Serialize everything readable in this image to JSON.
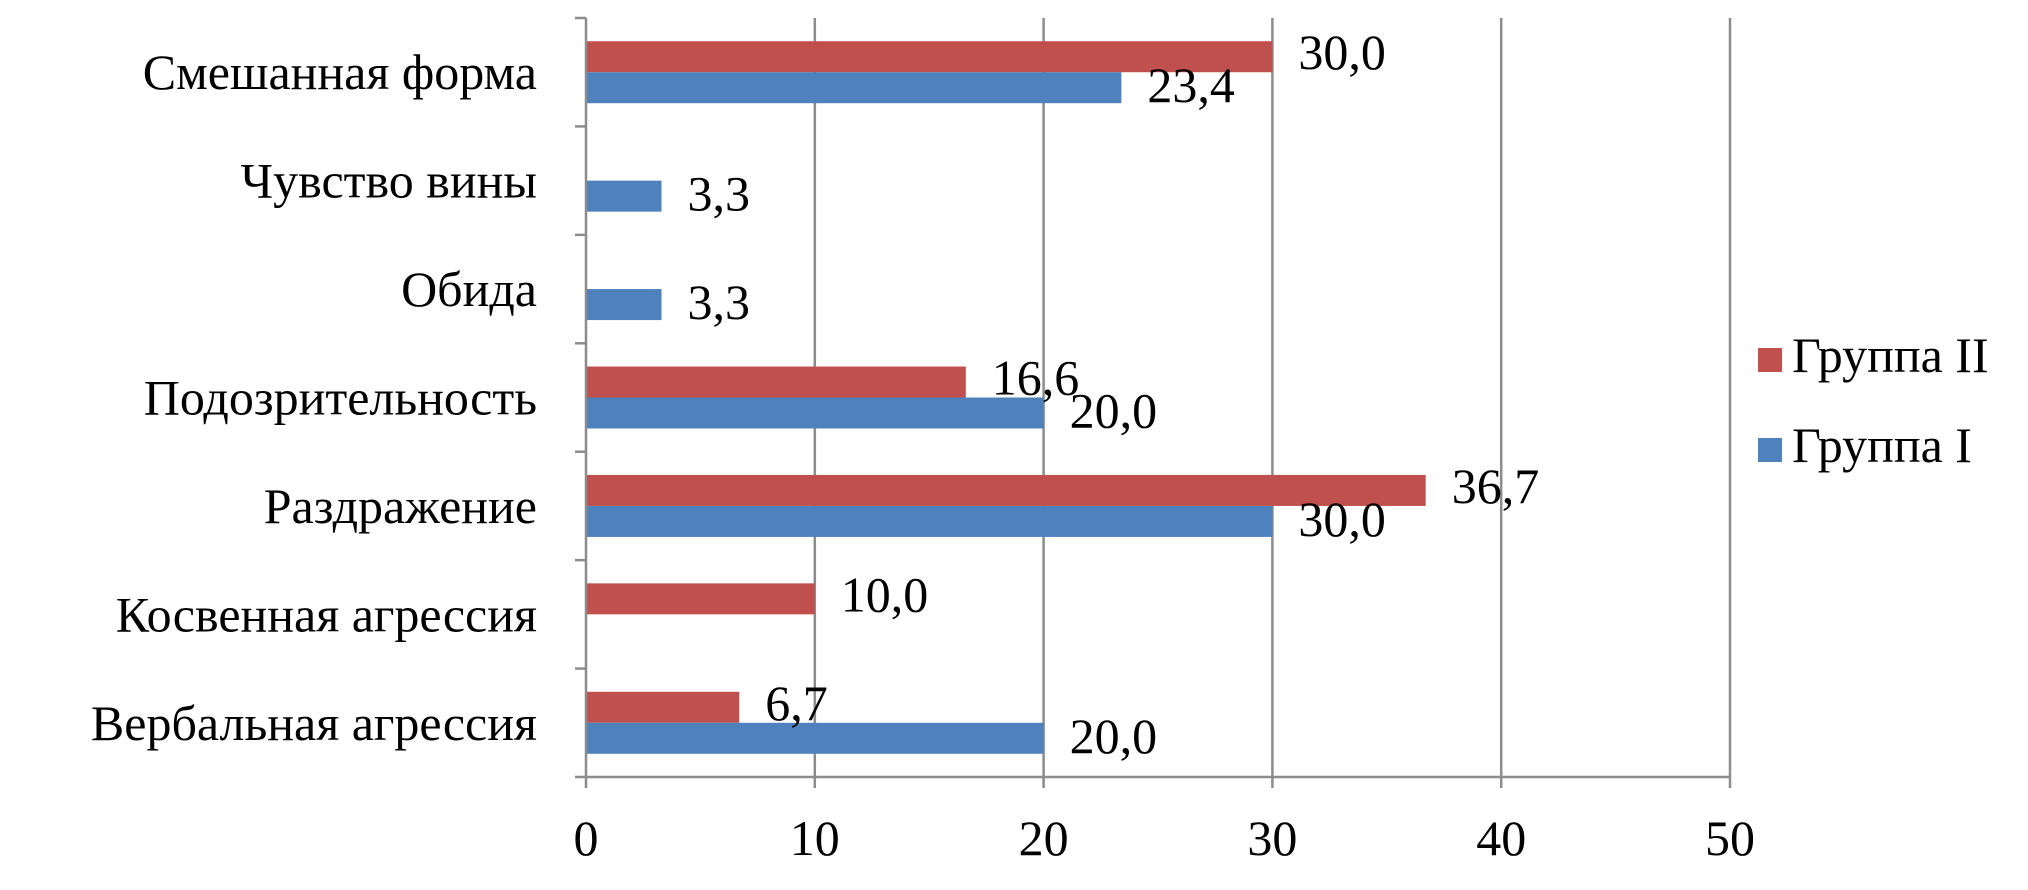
{
  "chart_data": {
    "type": "bar",
    "orientation": "horizontal",
    "categories": [
      "Вербальная агрессия",
      "Косвенная агрессия",
      "Раздражение",
      "Подозрительность",
      "Обида",
      "Чувство вины",
      "Смешанная форма"
    ],
    "series": [
      {
        "name": "Группа II",
        "color": "#c0504d",
        "values": [
          6.7,
          10.0,
          36.7,
          16.6,
          null,
          null,
          30.0
        ],
        "labels": [
          "6,7",
          "10,0",
          "36,7",
          "16,6",
          "",
          "",
          "30,0"
        ]
      },
      {
        "name": "Группа I",
        "color": "#4f81bd",
        "values": [
          20.0,
          null,
          30.0,
          20.0,
          3.3,
          3.3,
          23.4
        ],
        "labels": [
          "20,0",
          "",
          "30,0",
          "20,0",
          "3,3",
          "3,3",
          "23,4"
        ]
      }
    ],
    "x_ticks": [
      "0",
      "10",
      "20",
      "30",
      "40",
      "50"
    ],
    "xlim": [
      0,
      50
    ],
    "grid": true,
    "legend_position": "right",
    "title": "",
    "xlabel": "",
    "ylabel": ""
  }
}
